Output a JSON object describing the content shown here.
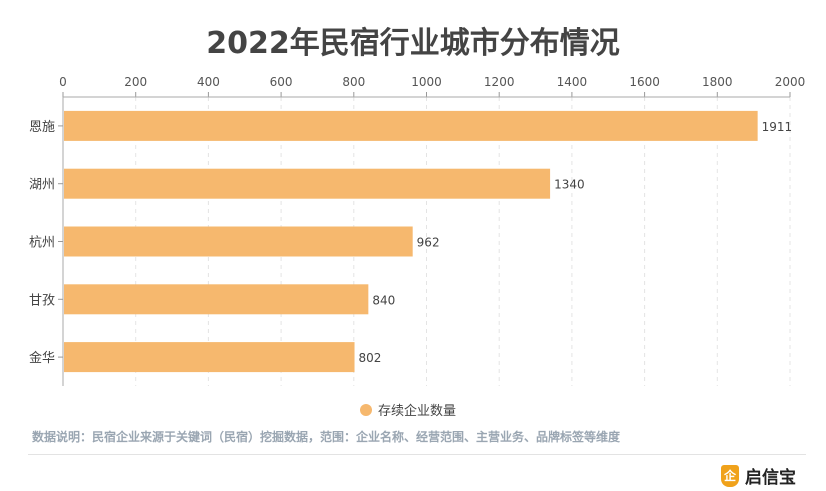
{
  "chart_data": {
    "type": "bar",
    "orientation": "horizontal",
    "title": "2022年民宿行业城市分布情况",
    "categories": [
      "恩施",
      "湖州",
      "杭州",
      "甘孜",
      "金华"
    ],
    "series": [
      {
        "name": "存续企业数量",
        "values": [
          1911,
          1340,
          962,
          840,
          802
        ],
        "color": "#f6b86e"
      }
    ],
    "xlim": [
      0,
      2000
    ],
    "xticks": [
      0,
      200,
      400,
      600,
      800,
      1000,
      1200,
      1400,
      1600,
      1800,
      2000
    ],
    "x_axis_position": "top",
    "grid": true,
    "legend": "bottom-center"
  },
  "footer": {
    "note": "数据说明：民宿企业来源于关键词（民宿）挖掘数据，范围：企业名称、经营范围、主营业务、品牌标签等维度",
    "brand": "启信宝",
    "brand_logo_glyph": "企"
  }
}
